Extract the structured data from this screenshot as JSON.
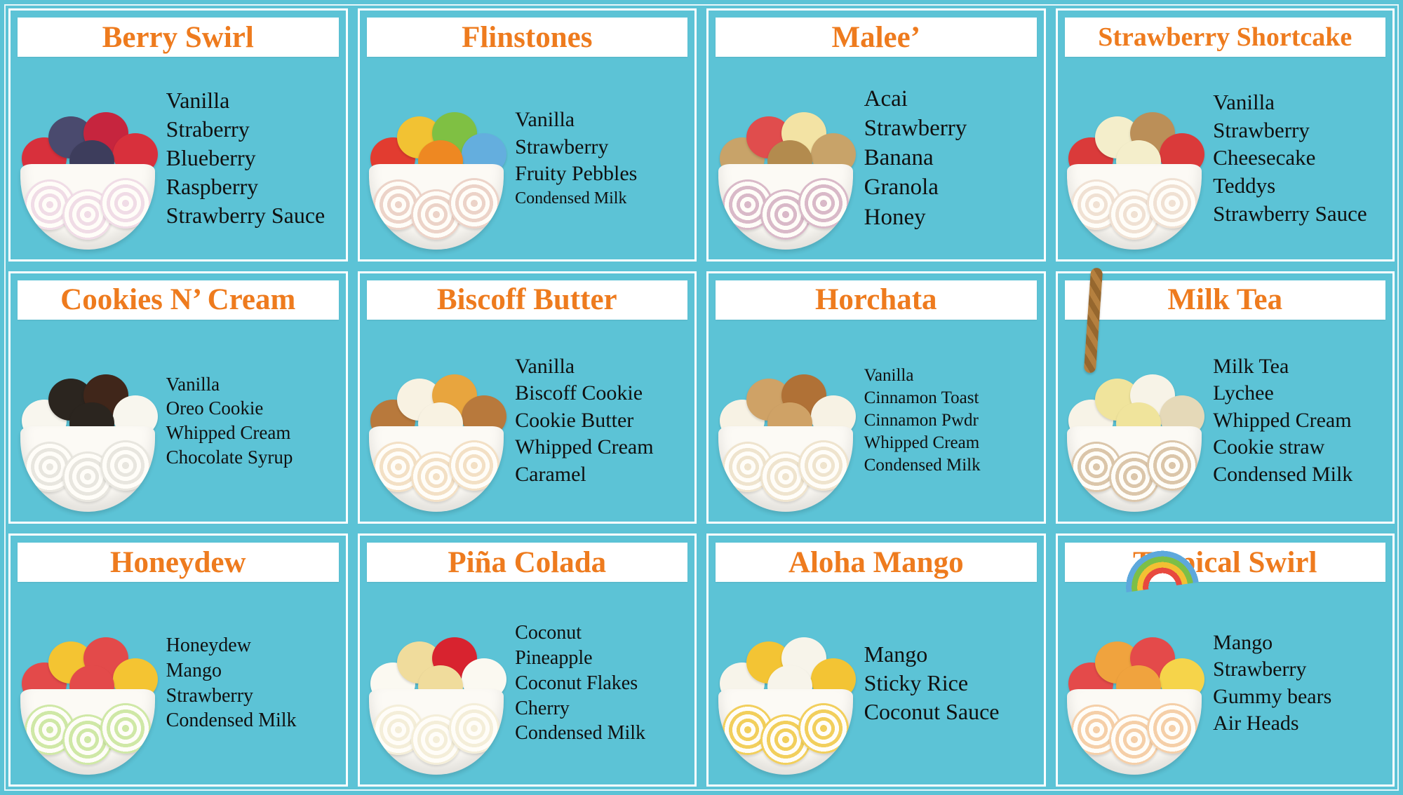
{
  "page": {
    "background": "#5cc3d6",
    "accent": "#ee7b1e",
    "ink": "#101010",
    "banner_bg": "#ffffff"
  },
  "flavors": [
    {
      "name": "Berry Swirl",
      "ingredients": [
        "Vanilla",
        "Straberry",
        "Blueberry",
        "Raspberry",
        "Strawberry Sauce"
      ],
      "photo": {
        "roll_color": "#f0dce6",
        "topping_colors": [
          "#d8303c",
          "#4a4a6e",
          "#c6253e",
          "#d8303c",
          "#3d3d5c"
        ]
      },
      "decoration": ""
    },
    {
      "name": "Flinstones",
      "ingredients": [
        "Vanilla",
        "Strawberry",
        "Fruity Pebbles",
        "Condensed Milk"
      ],
      "photo": {
        "roll_color": "#ecd3c8",
        "topping_colors": [
          "#e23c30",
          "#f2c233",
          "#7fc043",
          "#64aede",
          "#ee8822"
        ]
      },
      "decoration": ""
    },
    {
      "name": "Malee’",
      "ingredients": [
        "Acai",
        "Strawberry",
        "Banana",
        "Granola",
        "Honey"
      ],
      "photo": {
        "roll_color": "#d9b9c8",
        "topping_colors": [
          "#c8a369",
          "#e04d4d",
          "#f3e3a4",
          "#c8a369",
          "#b38b4e"
        ]
      },
      "decoration": ""
    },
    {
      "name": "Strawberry Shortcake",
      "ingredients": [
        "Vanilla",
        "Strawberry",
        "Cheesecake",
        "Teddys",
        "Strawberry Sauce"
      ],
      "photo": {
        "roll_color": "#f0e1d3",
        "topping_colors": [
          "#da3a3a",
          "#f4eecb",
          "#bb8f58",
          "#da3a3a",
          "#f4eecb"
        ]
      },
      "decoration": ""
    },
    {
      "name": "Cookies N’ Cream",
      "ingredients": [
        "Vanilla",
        "Oreo Cookie",
        "Whipped Cream",
        "Chocolate Syrup"
      ],
      "photo": {
        "roll_color": "#e8e6df",
        "topping_colors": [
          "#f8f6ee",
          "#2b251f",
          "#40261a",
          "#f8f6ee",
          "#2b251f"
        ]
      },
      "decoration": ""
    },
    {
      "name": "Biscoff Butter",
      "ingredients": [
        "Vanilla",
        "Biscoff Cookie",
        "Cookie Butter",
        "Whipped Cream",
        "Caramel"
      ],
      "photo": {
        "roll_color": "#f3e0c5",
        "topping_colors": [
          "#b8793c",
          "#f8f2e2",
          "#e8a53e",
          "#b8793c",
          "#f8f2e2"
        ]
      },
      "decoration": ""
    },
    {
      "name": "Horchata",
      "ingredients": [
        "Vanilla",
        "Cinnamon Toast",
        "Cinnamon Pwdr",
        "Whipped Cream",
        "Condensed Milk"
      ],
      "photo": {
        "roll_color": "#efe4ce",
        "topping_colors": [
          "#f7f2e4",
          "#cfa266",
          "#b07136",
          "#f7f2e4",
          "#cfa266"
        ]
      },
      "decoration": ""
    },
    {
      "name": "Milk Tea",
      "ingredients": [
        "Milk Tea",
        "Lychee",
        "Whipped Cream",
        "Cookie straw",
        "Condensed Milk"
      ],
      "photo": {
        "roll_color": "#dbc6aa",
        "topping_colors": [
          "#f7f3e7",
          "#f0e49c",
          "#f7f3e7",
          "#e5d9b8",
          "#f0e49c"
        ]
      },
      "decoration": "straw"
    },
    {
      "name": "Honeydew",
      "ingredients": [
        "Honeydew",
        "Mango",
        "Strawberry",
        "Condensed Milk"
      ],
      "photo": {
        "roll_color": "#cfe8a6",
        "topping_colors": [
          "#e34a4a",
          "#f4c432",
          "#e34a4a",
          "#f4c432",
          "#e34a4a"
        ]
      },
      "decoration": ""
    },
    {
      "name": "Piña Colada",
      "ingredients": [
        "Coconut",
        "Pineapple",
        "Coconut Flakes",
        "Cherry",
        "Condensed Milk"
      ],
      "photo": {
        "roll_color": "#f4eed9",
        "topping_colors": [
          "#fbf9f1",
          "#f0dc9c",
          "#d8232f",
          "#fbf9f1",
          "#f0dc9c"
        ]
      },
      "decoration": ""
    },
    {
      "name": "Aloha Mango",
      "ingredients": [
        "Mango",
        "Sticky Rice",
        "Coconut Sauce"
      ],
      "photo": {
        "roll_color": "#f2cf5c",
        "topping_colors": [
          "#f7f4ea",
          "#f3c434",
          "#f7f4ea",
          "#f3c434",
          "#f7f4ea"
        ]
      },
      "decoration": ""
    },
    {
      "name": "Tropical Swirl",
      "ingredients": [
        "Mango",
        "Strawberry",
        "Gummy bears",
        "Air Heads"
      ],
      "photo": {
        "roll_color": "#f5cfa8",
        "topping_colors": [
          "#e44a4a",
          "#f0a33e",
          "#e44a4a",
          "#f6d44a",
          "#f0a33e"
        ]
      },
      "decoration": "rainbow"
    }
  ]
}
